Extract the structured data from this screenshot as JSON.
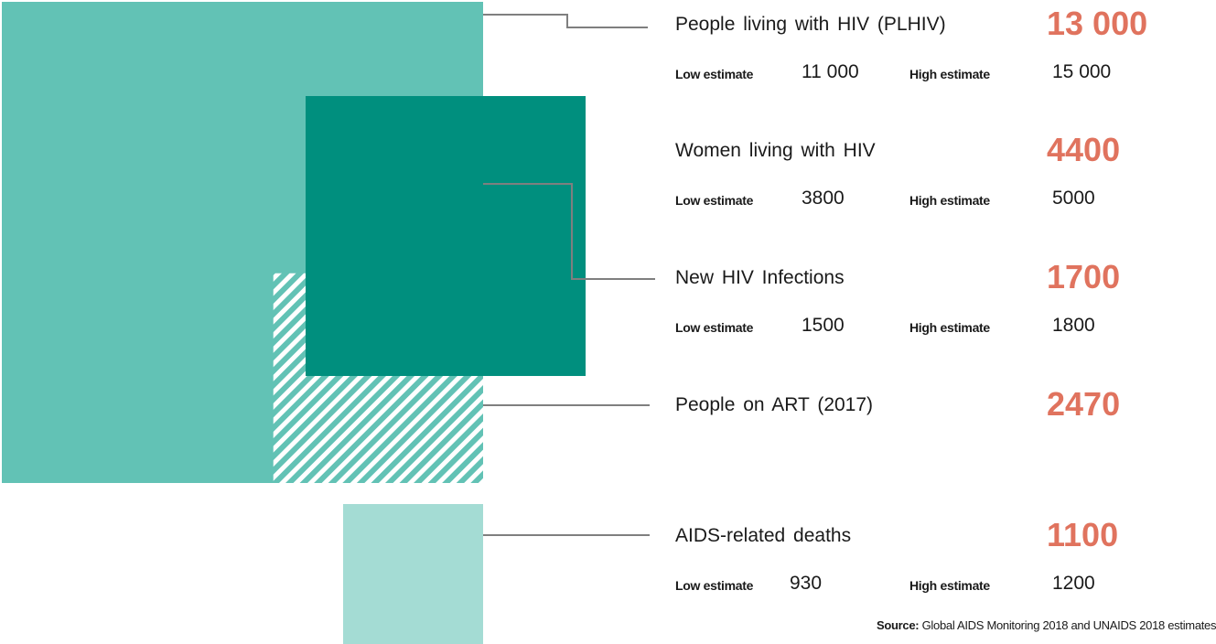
{
  "chart_data": {
    "type": "area",
    "subtype": "nested-square",
    "title": "",
    "colors": {
      "plhiv": "#62c2b5",
      "women": "#008f7e",
      "art": "#62c2b5",
      "deaths": "#a4dcd4",
      "value_text": "#e0735e"
    },
    "stats": [
      {
        "key": "plhiv",
        "label": "People living with HIV (PLHIV)",
        "value": 13000,
        "value_text": "13 000",
        "low_label": "Low estimate",
        "low": "11 000",
        "high_label": "High estimate",
        "high": "15 000"
      },
      {
        "key": "women",
        "label": "Women living with HIV",
        "value": 4400,
        "value_text": "4400",
        "low_label": "Low estimate",
        "low": "3800",
        "high_label": "High estimate",
        "high": "5000"
      },
      {
        "key": "new",
        "label": "New HIV Infections",
        "value": 1700,
        "value_text": "1700",
        "low_label": "Low estimate",
        "low": "1500",
        "high_label": "High estimate",
        "high": "1800"
      },
      {
        "key": "art",
        "label": "People on ART (2017)",
        "value": 2470,
        "value_text": "2470"
      },
      {
        "key": "deaths",
        "label": "AIDS-related deaths",
        "value": 1100,
        "value_text": "1100",
        "low_label": "Low estimate",
        "low": "930",
        "high_label": "High estimate",
        "high": "1200"
      }
    ]
  },
  "source": {
    "label": "Source:",
    "text": "Global AIDS Monitoring 2018 and UNAIDS 2018 estimates"
  }
}
